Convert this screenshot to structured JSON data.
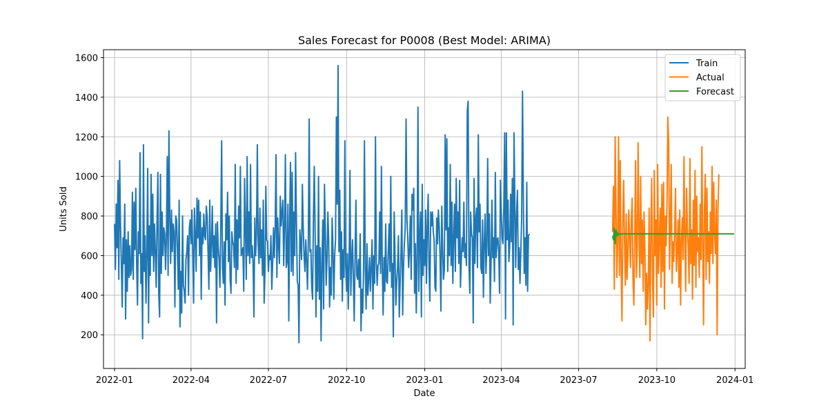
{
  "chart_data": {
    "type": "line",
    "title": "Sales Forecast for P0008 (Best Model: ARIMA)",
    "xlabel": "Date",
    "ylabel": "Units Sold",
    "xlim": [
      "2021-12-19",
      "2024-01-13"
    ],
    "ylim": [
      30,
      1640
    ],
    "grid": true,
    "legend_position": "top-right",
    "x_ticks": [
      "2022-01",
      "2022-04",
      "2022-07",
      "2022-10",
      "2023-01",
      "2023-04",
      "2023-07",
      "2023-10",
      "2024-01"
    ],
    "y_ticks": [
      200,
      400,
      600,
      800,
      1000,
      1200,
      1400,
      1600
    ],
    "series": [
      {
        "name": "Train",
        "color": "#1f77b4",
        "start_date": "2022-01-01",
        "values": [
          760,
          530,
          860,
          640,
          980,
          480,
          1080,
          760,
          560,
          340,
          690,
          560,
          860,
          280,
          680,
          420,
          720,
          490,
          650,
          500,
          530,
          920,
          480,
          870,
          630,
          940,
          560,
          350,
          720,
          610,
          1120,
          460,
          610,
          180,
          1160,
          520,
          700,
          360,
          610,
          1040,
          260,
          750,
          500,
          1010,
          600,
          910,
          520,
          760,
          620,
          440,
          770,
          1020,
          410,
          290,
          1010,
          510,
          820,
          600,
          740,
          710,
          530,
          690,
          1100,
          500,
          1230,
          800,
          560,
          830,
          620,
          760,
          720,
          340,
          800,
          780,
          630,
          430,
          880,
          240,
          520,
          310,
          800,
          450,
          420,
          360,
          580,
          620,
          700,
          400,
          740,
          780,
          660,
          830,
          610,
          360,
          840,
          710,
          520,
          890,
          690,
          880,
          600,
          820,
          380,
          740,
          660,
          810,
          700,
          680,
          850,
          790,
          620,
          430,
          880,
          520,
          650,
          850,
          590,
          700,
          540,
          760,
          260,
          770,
          640,
          580,
          440,
          750,
          1180,
          540,
          460,
          670,
          350,
          810,
          680,
          920,
          570,
          800,
          480,
          410,
          720,
          670,
          650,
          540,
          1060,
          460,
          780,
          530,
          850,
          690,
          1050,
          600,
          620,
          640,
          420,
          990,
          740,
          480,
          1100,
          600,
          820,
          560,
          1060,
          590,
          650,
          560,
          290,
          790,
          600,
          710,
          1160,
          650,
          560,
          840,
          590,
          730,
          500,
          880,
          360,
          520,
          950,
          680,
          670,
          520,
          600,
          580,
          700,
          430,
          560,
          740,
          590,
          740,
          1110,
          490,
          790,
          650,
          560,
          900,
          750,
          820,
          880,
          550,
          750,
          1110,
          540,
          570,
          860,
          270,
          760,
          1070,
          520,
          1020,
          500,
          820,
          600,
          1120,
          780,
          470,
          450,
          160,
          730,
          660,
          580,
          960,
          740,
          600,
          520,
          680,
          570,
          430,
          680,
          1290,
          620,
          630,
          440,
          380,
          800,
          1050,
          710,
          290,
          650,
          420,
          1000,
          380,
          640,
          170,
          560,
          780,
          330,
          960,
          730,
          450,
          580,
          820,
          660,
          340,
          540,
          400,
          790,
          630,
          380,
          600,
          680,
          1300,
          860,
          1560,
          620,
          930,
          480,
          720,
          370,
          630,
          490,
          1180,
          550,
          420,
          610,
          330,
          560,
          1030,
          400,
          580,
          680,
          470,
          270,
          600,
          880,
          500,
          480,
          580,
          440,
          710,
          220,
          430,
          310,
          540,
          1180,
          530,
          330,
          660,
          400,
          480,
          590,
          420,
          540,
          680,
          330,
          600,
          460,
          1200,
          570,
          450,
          550,
          560,
          820,
          510,
          1050,
          540,
          300,
          590,
          420,
          760,
          470,
          460,
          610,
          760,
          520,
          1000,
          440,
          560,
          190,
          820,
          600,
          350,
          470,
          540,
          700,
          290,
          460,
          610,
          830,
          300,
          540,
          660,
          740,
          1290,
          790,
          690,
          540,
          630,
          800,
          480,
          910,
          830,
          940,
          410,
          660,
          310,
          580,
          1350,
          420,
          680,
          820,
          290,
          960,
          500,
          680,
          550,
          830,
          460,
          740,
          910,
          540,
          370,
          820,
          750,
          820,
          720,
          680,
          440,
          420,
          790,
          660,
          830,
          750,
          590,
          320,
          850,
          640,
          480,
          530,
          1210,
          730,
          1190,
          520,
          740,
          600,
          1060,
          550,
          870,
          460,
          690,
          860,
          520,
          990,
          690,
          820,
          560,
          980,
          440,
          580,
          690,
          620,
          870,
          590,
          660,
          550,
          1330,
          1380,
          560,
          410,
          820,
          710,
          690,
          260,
          990,
          560,
          790,
          840,
          540,
          1210,
          720,
          860,
          540,
          510,
          780,
          390,
          660,
          810,
          510,
          650,
          1090,
          600,
          810,
          360,
          570,
          880,
          590,
          690,
          470,
          1020,
          590,
          680,
          690,
          620,
          410,
          980,
          820,
          690,
          660,
          840,
          1220,
          280,
          1220,
          680,
          880,
          570,
          650,
          910,
          670,
          990,
          250,
          1220,
          860,
          540,
          810,
          930,
          530,
          640,
          460,
          620,
          790,
          1430,
          880,
          510,
          690,
          450,
          970,
          420,
          700,
          710
        ]
      },
      {
        "name": "Actual",
        "color": "#ff7f0e",
        "start_date": "2023-08-10",
        "values": [
          720,
          950,
          430,
          1200,
          850,
          490,
          680,
          1200,
          500,
          1080,
          550,
          270,
          760,
          980,
          670,
          450,
          810,
          480,
          600,
          830,
          690,
          540,
          780,
          890,
          480,
          350,
          680,
          1080,
          490,
          640,
          1170,
          720,
          490,
          1000,
          560,
          780,
          420,
          820,
          640,
          250,
          510,
          330,
          460,
          840,
          170,
          690,
          990,
          470,
          290,
          1030,
          600,
          780,
          350,
          1060,
          510,
          690,
          840,
          440,
          960,
          520,
          970,
          330,
          800,
          650,
          860,
          1300,
          1160,
          530,
          760,
          1060,
          460,
          670,
          570,
          720,
          940,
          520,
          620,
          780,
          440,
          830,
          350,
          680,
          790,
          580,
          1100,
          710,
          420,
          940,
          740,
          640,
          460,
          1090,
          560,
          730,
          380,
          880,
          550,
          1030,
          440,
          900,
          620,
          690,
          490,
          860,
          580,
          1150,
          690,
          250,
          830,
          1010,
          480,
          940,
          570,
          720,
          460,
          820,
          610,
          1050,
          560,
          970,
          720,
          610,
          880,
          200,
          830,
          1010
        ]
      },
      {
        "name": "Forecast",
        "color": "#2ca02c",
        "start_date": "2023-08-10",
        "values": [
          700,
          680,
          740,
          660,
          730,
          700,
          715,
          705,
          708,
          710,
          709,
          710,
          710,
          710,
          710,
          710,
          710,
          710,
          710,
          710,
          710,
          710,
          710,
          710,
          710,
          710,
          710,
          710,
          710,
          710,
          710,
          710,
          710,
          710,
          710,
          710,
          710,
          710,
          710,
          710,
          710,
          710,
          710,
          710,
          710,
          710,
          710,
          710,
          710,
          710,
          710,
          710,
          710,
          710,
          710,
          710,
          710,
          710,
          710,
          710,
          710,
          710,
          710,
          710,
          710,
          710,
          710,
          710,
          710,
          710,
          710,
          710,
          710,
          710,
          710,
          710,
          710,
          710,
          710,
          710,
          710,
          710,
          710,
          710,
          710,
          710,
          710,
          710,
          710,
          710,
          710,
          710,
          710,
          710,
          710,
          710,
          710,
          710,
          710,
          710,
          710,
          710,
          710,
          710,
          710,
          710,
          710,
          710,
          710,
          710,
          710,
          710,
          710,
          710,
          710,
          710,
          710,
          710,
          710,
          710,
          710,
          710,
          710,
          710,
          710,
          710,
          710,
          710,
          710,
          710,
          710,
          710,
          710,
          710,
          710,
          710,
          710,
          710,
          710,
          710,
          710,
          710,
          710,
          710
        ]
      }
    ]
  }
}
